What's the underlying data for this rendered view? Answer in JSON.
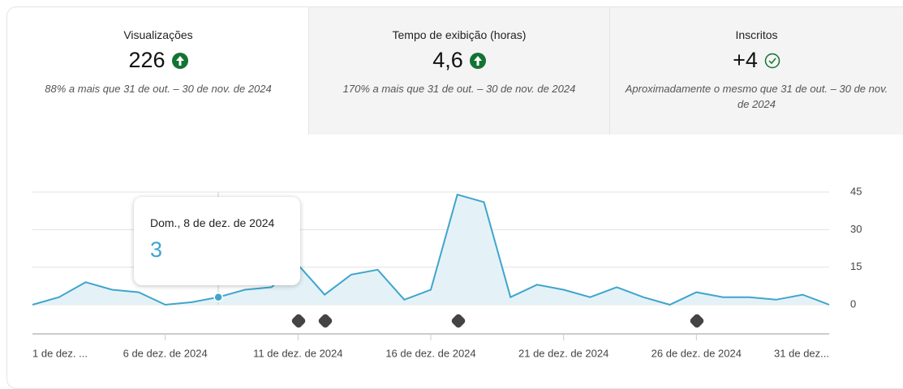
{
  "cards": [
    {
      "title": "Visualizações",
      "value": "226",
      "comparison": "88% a mais que 31 de out. – 30 de nov. de 2024"
    },
    {
      "title": "Tempo de exibição (horas)",
      "value": "4,6",
      "comparison": "170% a mais que 31 de out. – 30 de nov. de 2024"
    },
    {
      "title": "Inscritos",
      "value": "+4",
      "comparison": "Aproximadamente o mesmo que 31 de out. – 30 de nov. de 2024"
    }
  ],
  "tooltip": {
    "label": "Dom., 8 de dez. de 2024"
  },
  "chart_data": {
    "type": "line",
    "categories": [
      "1 de dez. ...",
      null,
      null,
      null,
      null,
      "6 de dez. de 2024",
      null,
      null,
      null,
      null,
      "11 de dez. de 2024",
      null,
      null,
      null,
      null,
      "16 de dez. de 2024",
      null,
      null,
      null,
      null,
      "21 de dez. de 2024",
      null,
      null,
      null,
      null,
      "26 de dez. de 2024",
      null,
      null,
      null,
      null,
      "31 de dez..."
    ],
    "values": [
      0,
      3,
      9,
      6,
      5,
      0,
      1,
      3,
      6,
      7,
      16,
      4,
      12,
      14,
      2,
      6,
      44,
      41,
      3,
      8,
      6,
      3,
      7,
      3,
      0,
      5,
      3,
      3,
      2,
      4,
      0
    ],
    "color": "#3fa5cc",
    "ylim": [
      0,
      45
    ],
    "yticks": [
      0,
      15,
      30,
      45
    ],
    "grid": true
  }
}
